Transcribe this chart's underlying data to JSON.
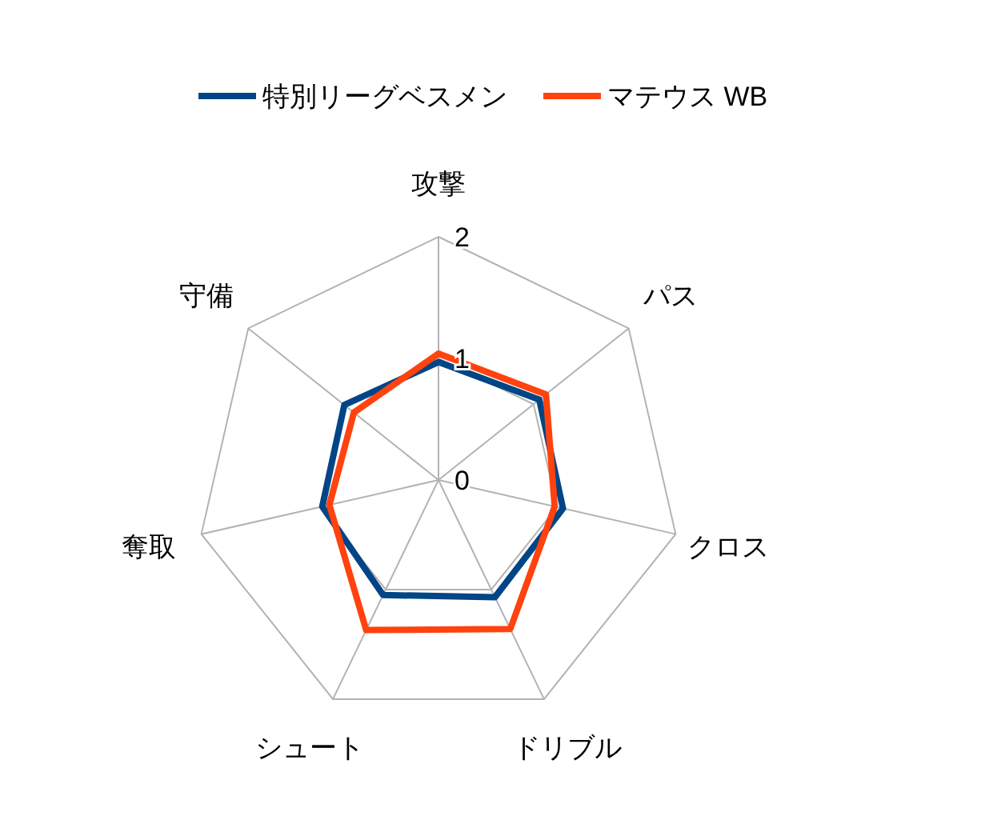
{
  "chart_data": {
    "type": "radar",
    "categories": [
      "攻撃",
      "パス",
      "クロス",
      "ドリブル",
      "シュート",
      "奪取",
      "守備"
    ],
    "ylim": [
      0,
      2
    ],
    "yticks": [
      0,
      1,
      2
    ],
    "grid": true,
    "legend": "top",
    "series": [
      {
        "name": "特別リーグベスメン",
        "color": "#004586",
        "values": [
          0.97,
          1.06,
          1.05,
          1.07,
          1.05,
          0.98,
          0.99
        ]
      },
      {
        "name": "マテウス WB",
        "color": "#ff420e",
        "values": [
          1.04,
          1.13,
          0.98,
          1.36,
          1.37,
          0.92,
          0.89
        ]
      }
    ]
  }
}
